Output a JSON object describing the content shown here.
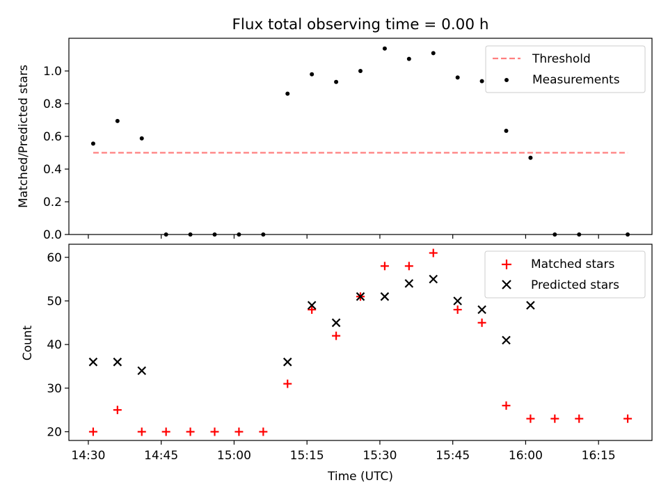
{
  "chart_data": {
    "type": "scatter",
    "title": "Flux total observing time = 0.00 h",
    "xlabel": "Time (UTC)",
    "x_ticks": [
      "14:30",
      "14:45",
      "15:00",
      "15:15",
      "15:30",
      "15:45",
      "16:00",
      "16:15"
    ],
    "x_tick_values": [
      "14:30",
      "14:45",
      "15:00",
      "15:15",
      "15:30",
      "15:45",
      "16:00",
      "16:15"
    ],
    "x_range": [
      "14:26",
      "16:26"
    ],
    "x": [
      "14:31",
      "14:36",
      "14:41",
      "14:46",
      "14:51",
      "14:56",
      "15:01",
      "15:06",
      "15:11",
      "15:16",
      "15:21",
      "15:26",
      "15:31",
      "15:36",
      "15:41",
      "15:46",
      "15:51",
      "15:56",
      "16:01",
      "16:06",
      "16:11",
      "16:21"
    ],
    "panels": [
      {
        "ylabel": "Matched/Predicted stars",
        "ylim": [
          0,
          1.2
        ],
        "y_ticks": [
          "0.0",
          "0.2",
          "0.4",
          "0.6",
          "0.8",
          "1.0"
        ],
        "y_tick_values": [
          0,
          0.2,
          0.4,
          0.6,
          0.8,
          1.0
        ],
        "legend_position": "top-right",
        "series": [
          {
            "name": "Threshold",
            "kind": "dashed-line",
            "color": "#ff7f7f",
            "x": [
              "14:31",
              "16:21"
            ],
            "values": [
              0.5,
              0.5
            ]
          },
          {
            "name": "Measurements",
            "kind": "dot",
            "color": "#000000",
            "values": [
              0.556,
              0.694,
              0.588,
              0.0,
              0.0,
              0.0,
              0.0,
              0.0,
              0.861,
              0.98,
              0.933,
              1.0,
              1.137,
              1.074,
              1.109,
              0.96,
              0.938,
              0.634,
              0.469,
              0.0,
              0.0,
              0.0
            ]
          }
        ]
      },
      {
        "ylabel": "Count",
        "ylim": [
          18,
          63
        ],
        "y_ticks": [
          "20",
          "30",
          "40",
          "50",
          "60"
        ],
        "y_tick_values": [
          20,
          30,
          40,
          50,
          60
        ],
        "legend_position": "top-right",
        "series": [
          {
            "name": "Matched stars",
            "kind": "plus",
            "color": "#ff0000",
            "values": [
              20,
              25,
              20,
              20,
              20,
              20,
              20,
              20,
              31,
              48,
              42,
              51,
              58,
              58,
              61,
              48,
              45,
              26,
              23,
              23,
              23,
              23
            ]
          },
          {
            "name": "Predicted stars",
            "kind": "cross",
            "color": "#000000",
            "x": [
              "14:31",
              "14:36",
              "14:41",
              "15:11",
              "15:16",
              "15:21",
              "15:26",
              "15:31",
              "15:36",
              "15:41",
              "15:46",
              "15:51",
              "15:56",
              "16:01"
            ],
            "values": [
              36,
              36,
              34,
              36,
              49,
              45,
              51,
              51,
              54,
              55,
              50,
              48,
              41,
              49
            ]
          }
        ]
      }
    ]
  }
}
